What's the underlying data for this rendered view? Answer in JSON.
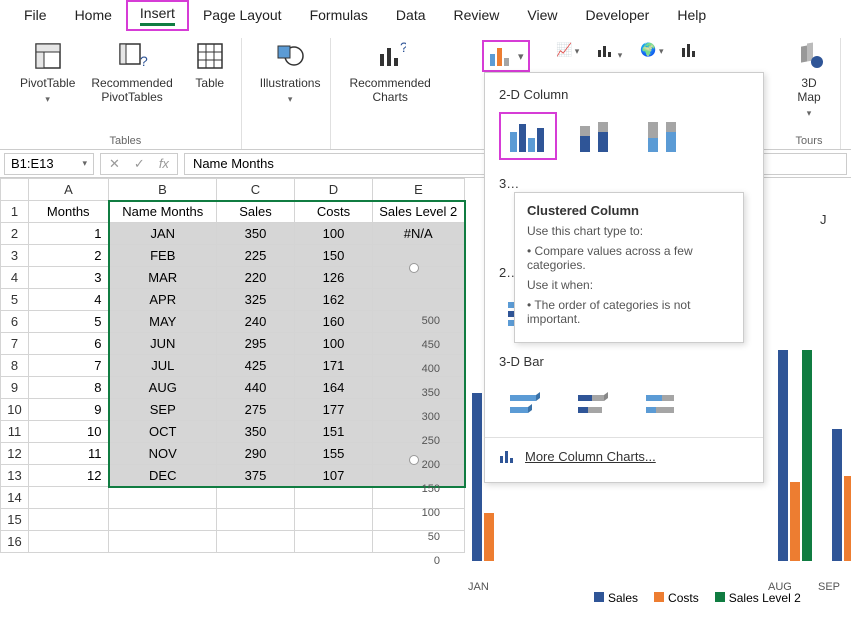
{
  "menu": {
    "items": [
      "File",
      "Home",
      "Insert",
      "Page Layout",
      "Formulas",
      "Data",
      "Review",
      "View",
      "Developer",
      "Help"
    ],
    "active_index": 2
  },
  "ribbon": {
    "tables_group": "Tables",
    "pivotTable": "PivotTable",
    "recPivot": "Recommended\nPivotTables",
    "table": "Table",
    "illustrations": "Illustrations",
    "recCharts": "Recommended\nCharts",
    "map3d": "3D\nMap",
    "tours": "Tours"
  },
  "formula": {
    "namebox": "B1:E13",
    "value": "Name Months"
  },
  "columns": [
    "A",
    "B",
    "C",
    "D",
    "E",
    "J"
  ],
  "headers_row": [
    "Months",
    "Name Months",
    "Sales",
    "Costs",
    "Sales Level 2"
  ],
  "data_rows": [
    [
      1,
      "JAN",
      350,
      100,
      "#N/A"
    ],
    [
      2,
      "FEB",
      225,
      150,
      ""
    ],
    [
      3,
      "MAR",
      220,
      126,
      ""
    ],
    [
      4,
      "APR",
      325,
      162,
      ""
    ],
    [
      5,
      "MAY",
      240,
      160,
      ""
    ],
    [
      6,
      "JUN",
      295,
      100,
      ""
    ],
    [
      7,
      "JUL",
      425,
      171,
      ""
    ],
    [
      8,
      "AUG",
      440,
      164,
      ""
    ],
    [
      9,
      "SEP",
      275,
      177,
      ""
    ],
    [
      10,
      "OCT",
      350,
      151,
      ""
    ],
    [
      11,
      "NOV",
      290,
      155,
      ""
    ],
    [
      12,
      "DEC",
      375,
      107,
      ""
    ]
  ],
  "chart_panel": {
    "section1": "2-D Column",
    "section2": "3…",
    "section3": "2…",
    "section4": "3-D Bar",
    "more": "More Column Charts..."
  },
  "tooltip": {
    "title": "Clustered Column",
    "l1": "Use this chart type to:",
    "l2": "• Compare values across a few categories.",
    "l3": "Use it when:",
    "l4": "• The order of categories is not important."
  },
  "embed_chart": {
    "y_ticks": [
      500,
      450,
      400,
      350,
      300,
      250,
      200,
      150,
      100,
      50,
      0
    ],
    "x_labels": [
      "JAN",
      "AUG",
      "SEP"
    ],
    "legend": [
      "Sales",
      "Costs",
      "Sales Level 2"
    ],
    "colors": {
      "sales": "#2f5597",
      "costs": "#ed7d31",
      "level2": "#107c41",
      "ytext": "#595959"
    },
    "bars": [
      {
        "label": "JAN",
        "sales": 350,
        "costs": 100,
        "level2": 0
      },
      {
        "label": "AUG",
        "sales": 440,
        "costs": 164,
        "level2": 440
      },
      {
        "label": "SEP",
        "sales": 275,
        "costs": 177,
        "level2": 0
      }
    ],
    "ymax": 500
  }
}
